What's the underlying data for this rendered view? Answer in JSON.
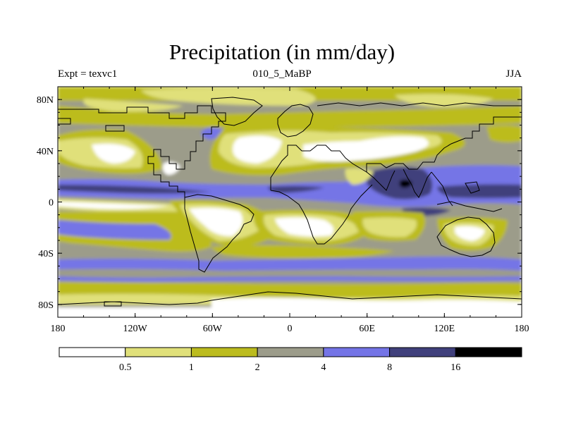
{
  "title": "Precipitation (in mm/day)",
  "subtitle_left": "Expt = texvc1",
  "subtitle_center": "010_5_MaBP",
  "subtitle_right": "JJA",
  "colors": {
    "c0": "#ffffff",
    "c1": "#e0e07a",
    "c2": "#bcbc1e",
    "c3": "#9c9c8a",
    "c4": "#7474e6",
    "c5": "#40407c",
    "c6": "#000000"
  },
  "y_axis": {
    "ticks": [
      {
        "lat": 80,
        "label": "80N"
      },
      {
        "lat": 40,
        "label": "40N"
      },
      {
        "lat": 0,
        "label": "0"
      },
      {
        "lat": -40,
        "label": "40S"
      },
      {
        "lat": -80,
        "label": "80S"
      }
    ]
  },
  "x_axis": {
    "ticks": [
      {
        "lon": -180,
        "label": "180"
      },
      {
        "lon": -120,
        "label": "120W"
      },
      {
        "lon": -60,
        "label": "60W"
      },
      {
        "lon": 0,
        "label": "0"
      },
      {
        "lon": 60,
        "label": "60E"
      },
      {
        "lon": 120,
        "label": "120E"
      },
      {
        "lon": 180,
        "label": "180"
      }
    ]
  },
  "colorbar": {
    "labels": [
      "0.5",
      "1",
      "2",
      "4",
      "8",
      "16"
    ]
  },
  "chart_data": {
    "type": "heatmap",
    "title": "Precipitation (in mm/day)",
    "units": "mm/day",
    "levels": [
      0.5,
      1,
      2,
      4,
      8,
      16
    ],
    "x_range": [
      -180,
      180
    ],
    "y_range": [
      -90,
      90
    ]
  }
}
